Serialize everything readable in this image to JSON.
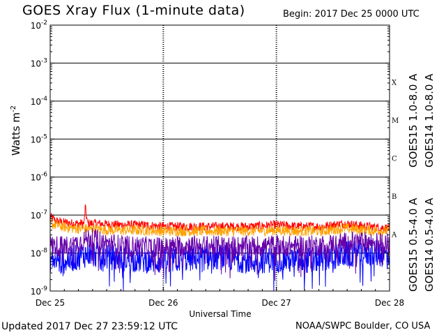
{
  "header": {
    "title": "GOES Xray Flux (1-minute data)",
    "begin": "Begin:  2017 Dec 25 0000 UTC"
  },
  "footer": {
    "updated": "Updated 2017 Dec 27 23:59:12 UTC",
    "credit": "NOAA/SWPC Boulder, CO USA"
  },
  "chart_data": {
    "type": "line",
    "title": "GOES Xray Flux (1-minute data)",
    "xlabel": "Universal Time",
    "ylabel": "Watts m",
    "ylabel_sup": "-2",
    "y_scale": "log",
    "ylim": [
      1e-09,
      0.01
    ],
    "y_ticks": [
      {
        "base": "10",
        "exp": "-2"
      },
      {
        "base": "10",
        "exp": "-3"
      },
      {
        "base": "10",
        "exp": "-4"
      },
      {
        "base": "10",
        "exp": "-5"
      },
      {
        "base": "10",
        "exp": "-6"
      },
      {
        "base": "10",
        "exp": "-7"
      },
      {
        "base": "10",
        "exp": "-8"
      },
      {
        "base": "10",
        "exp": "-9"
      }
    ],
    "x_ticks": [
      "Dec 25",
      "Dec 26",
      "Dec 27",
      "Dec 28"
    ],
    "xlim_days": [
      0,
      3
    ],
    "flare_classes": [
      {
        "label": "X",
        "value": 0.0001
      },
      {
        "label": "M",
        "value": 1e-05
      },
      {
        "label": "C",
        "value": 1e-06
      },
      {
        "label": "B",
        "value": 1e-07
      },
      {
        "label": "A",
        "value": 1e-08
      }
    ],
    "grid": true,
    "series": [
      {
        "name": "GOES15 1.0-8.0 A",
        "color": "#ff0000",
        "x": [
          0,
          0.05,
          0.1,
          0.2,
          0.3,
          0.31,
          0.33,
          0.4,
          0.6,
          0.8,
          1.0,
          1.2,
          1.5,
          1.8,
          2.0,
          2.2,
          2.4,
          2.6,
          2.8,
          3.0
        ],
        "y": [
          9e-08,
          7e-08,
          6.5e-08,
          6e-08,
          6e-08,
          1.6e-07,
          6e-08,
          6e-08,
          5.5e-08,
          5.5e-08,
          5e-08,
          5e-08,
          5e-08,
          5e-08,
          5.5e-08,
          5e-08,
          5e-08,
          6e-08,
          5e-08,
          4.5e-08
        ]
      },
      {
        "name": "GOES14 1.0-8.0 A",
        "color": "#ffa000",
        "x": [
          0,
          0.1,
          0.2,
          0.4,
          0.6,
          0.8,
          1.0,
          1.2,
          1.5,
          1.8,
          2.0,
          2.2,
          2.4,
          2.6,
          2.8,
          3.0
        ],
        "y": [
          6e-08,
          5e-08,
          4.5e-08,
          4.2e-08,
          4e-08,
          4e-08,
          3.8e-08,
          3.8e-08,
          3.8e-08,
          3.8e-08,
          4e-08,
          3.8e-08,
          3.8e-08,
          4.5e-08,
          4e-08,
          3.8e-08
        ]
      },
      {
        "name": "GOES15 0.5-4.0 A",
        "color": "#0000ff",
        "x": [
          0,
          0.1,
          0.2,
          0.35,
          0.5,
          0.7,
          1.0,
          1.2,
          1.5,
          1.8,
          2.0,
          2.2,
          2.4,
          2.7,
          3.0
        ],
        "y": [
          7e-09,
          6e-09,
          7e-09,
          1e-08,
          8e-09,
          7e-09,
          6e-09,
          7e-09,
          8e-09,
          6e-09,
          7e-09,
          6e-09,
          7e-09,
          1e-08,
          9e-09
        ]
      },
      {
        "name": "GOES14 0.5-4.0 A",
        "color": "#6600aa",
        "x": [
          0,
          0.1,
          0.2,
          0.35,
          0.5,
          0.7,
          1.0,
          1.2,
          1.5,
          1.8,
          2.0,
          2.2,
          2.4,
          2.7,
          3.0
        ],
        "y": [
          1.6e-08,
          1.5e-08,
          1.6e-08,
          2.5e-08,
          1.8e-08,
          1.5e-08,
          1.4e-08,
          1.6e-08,
          1.5e-08,
          1.5e-08,
          1.6e-08,
          1.5e-08,
          1.6e-08,
          2e-08,
          1.8e-08
        ]
      }
    ]
  }
}
